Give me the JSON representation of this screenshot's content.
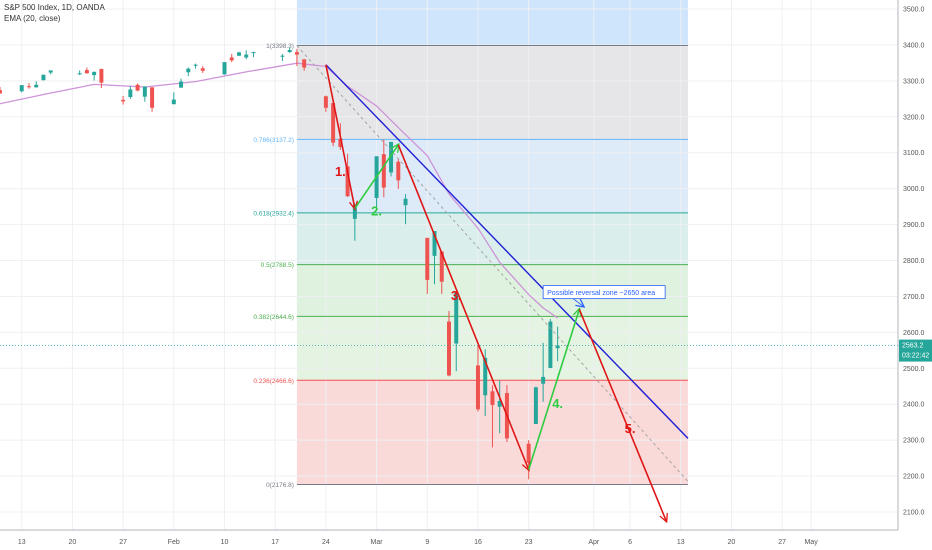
{
  "header": {
    "symbol_label": "S&P 500 Index, 1D, OANDA",
    "indicator_label": "EMA (20, close)"
  },
  "colors": {
    "up": "#26a69a",
    "down": "#ef5350",
    "ema": "#ce93d8",
    "trendline": "#1f1fd6",
    "wave_down": "#e01616",
    "wave_up": "#2ecc40",
    "callout": "#2962ff",
    "grid": "#eef0f3"
  },
  "chart_data": {
    "type": "candlestick",
    "y_axis": {
      "min": 2050,
      "max": 3525,
      "ticks": [
        2100,
        2200,
        2300,
        2400,
        2500,
        2600,
        2700,
        2800,
        2900,
        3000,
        3100,
        3200,
        3300,
        3400,
        3500
      ]
    },
    "x_axis": {
      "min": "2020-01-10",
      "max": "2020-05-13",
      "ticks": [
        {
          "date": "2020-01-13",
          "label": "13"
        },
        {
          "date": "2020-01-20",
          "label": "20"
        },
        {
          "date": "2020-01-27",
          "label": "27"
        },
        {
          "date": "2020-02-03",
          "label": "Feb"
        },
        {
          "date": "2020-02-10",
          "label": "10"
        },
        {
          "date": "2020-02-17",
          "label": "17"
        },
        {
          "date": "2020-02-24",
          "label": "24"
        },
        {
          "date": "2020-03-02",
          "label": "Mar"
        },
        {
          "date": "2020-03-09",
          "label": "9"
        },
        {
          "date": "2020-03-16",
          "label": "16"
        },
        {
          "date": "2020-03-23",
          "label": "23"
        },
        {
          "date": "2020-04-01",
          "label": "Apr"
        },
        {
          "date": "2020-04-06",
          "label": "6"
        },
        {
          "date": "2020-04-13",
          "label": "13"
        },
        {
          "date": "2020-04-20",
          "label": "20"
        },
        {
          "date": "2020-04-27",
          "label": "27"
        },
        {
          "date": "2020-05-01",
          "label": "May"
        }
      ]
    },
    "last_price": "2563.2",
    "countdown": "03:22:42",
    "candles": [
      {
        "d": "2020-01-09",
        "o": 3266,
        "h": 3276,
        "l": 3263,
        "c": 3275
      },
      {
        "d": "2020-01-10",
        "o": 3274,
        "h": 3283,
        "l": 3264,
        "c": 3265
      },
      {
        "d": "2020-01-13",
        "o": 3271,
        "h": 3288,
        "l": 3268,
        "c": 3288
      },
      {
        "d": "2020-01-14",
        "o": 3285,
        "h": 3294,
        "l": 3278,
        "c": 3283
      },
      {
        "d": "2020-01-15",
        "o": 3282,
        "h": 3299,
        "l": 3281,
        "c": 3289
      },
      {
        "d": "2020-01-16",
        "o": 3302,
        "h": 3317,
        "l": 3301,
        "c": 3317
      },
      {
        "d": "2020-01-17",
        "o": 3323,
        "h": 3329,
        "l": 3318,
        "c": 3329
      },
      {
        "d": "2020-01-21",
        "o": 3321,
        "h": 3329,
        "l": 3316,
        "c": 3321
      },
      {
        "d": "2020-01-22",
        "o": 3330,
        "h": 3337,
        "l": 3320,
        "c": 3321
      },
      {
        "d": "2020-01-23",
        "o": 3316,
        "h": 3326,
        "l": 3301,
        "c": 3325
      },
      {
        "d": "2020-01-24",
        "o": 3333,
        "h": 3334,
        "l": 3280,
        "c": 3295
      },
      {
        "d": "2020-01-27",
        "o": 3247,
        "h": 3258,
        "l": 3234,
        "c": 3243
      },
      {
        "d": "2020-01-28",
        "o": 3255,
        "h": 3285,
        "l": 3250,
        "c": 3276
      },
      {
        "d": "2020-01-29",
        "o": 3289,
        "h": 3293,
        "l": 3271,
        "c": 3273
      },
      {
        "d": "2020-01-30",
        "o": 3256,
        "h": 3285,
        "l": 3242,
        "c": 3284
      },
      {
        "d": "2020-01-31",
        "o": 3282,
        "h": 3282,
        "l": 3214,
        "c": 3225
      },
      {
        "d": "2020-02-03",
        "o": 3235,
        "h": 3268,
        "l": 3235,
        "c": 3248
      },
      {
        "d": "2020-02-04",
        "o": 3281,
        "h": 3306,
        "l": 3281,
        "c": 3298
      },
      {
        "d": "2020-02-05",
        "o": 3324,
        "h": 3337,
        "l": 3313,
        "c": 3334
      },
      {
        "d": "2020-02-06",
        "o": 3344,
        "h": 3348,
        "l": 3334,
        "c": 3345
      },
      {
        "d": "2020-02-07",
        "o": 3335,
        "h": 3341,
        "l": 3322,
        "c": 3328
      },
      {
        "d": "2020-02-10",
        "o": 3318,
        "h": 3352,
        "l": 3317,
        "c": 3352
      },
      {
        "d": "2020-02-11",
        "o": 3365,
        "h": 3375,
        "l": 3352,
        "c": 3357
      },
      {
        "d": "2020-02-12",
        "o": 3370,
        "h": 3381,
        "l": 3369,
        "c": 3379
      },
      {
        "d": "2020-02-13",
        "o": 3365,
        "h": 3385,
        "l": 3360,
        "c": 3373
      },
      {
        "d": "2020-02-14",
        "o": 3378,
        "h": 3381,
        "l": 3366,
        "c": 3380
      },
      {
        "d": "2020-02-18",
        "o": 3369,
        "h": 3375,
        "l": 3355,
        "c": 3370
      },
      {
        "d": "2020-02-19",
        "o": 3380,
        "h": 3393,
        "l": 3378,
        "c": 3386
      },
      {
        "d": "2020-02-20",
        "o": 3380,
        "h": 3389,
        "l": 3341,
        "c": 3373
      },
      {
        "d": "2020-02-21",
        "o": 3360,
        "h": 3360,
        "l": 3328,
        "c": 3337
      },
      {
        "d": "2020-02-24",
        "o": 3257,
        "h": 3259,
        "l": 3214,
        "c": 3225
      },
      {
        "d": "2020-02-25",
        "o": 3238,
        "h": 3247,
        "l": 3118,
        "c": 3128
      },
      {
        "d": "2020-02-26",
        "o": 3139,
        "h": 3182,
        "l": 3108,
        "c": 3116
      },
      {
        "d": "2020-02-27",
        "o": 3062,
        "h": 3097,
        "l": 2977,
        "c": 2979
      },
      {
        "d": "2020-02-28",
        "o": 2916,
        "h": 2959,
        "l": 2855,
        "c": 2954
      },
      {
        "d": "2020-03-02",
        "o": 2974,
        "h": 3090,
        "l": 2945,
        "c": 3090
      },
      {
        "d": "2020-03-03",
        "o": 3096,
        "h": 3136,
        "l": 2976,
        "c": 3003
      },
      {
        "d": "2020-03-04",
        "o": 3045,
        "h": 3130,
        "l": 3034,
        "c": 3130
      },
      {
        "d": "2020-03-05",
        "o": 3075,
        "h": 3083,
        "l": 2999,
        "c": 3023
      },
      {
        "d": "2020-03-06",
        "o": 2954,
        "h": 2985,
        "l": 2901,
        "c": 2972
      },
      {
        "d": "2020-03-09",
        "o": 2863,
        "h": 2863,
        "l": 2707,
        "c": 2746
      },
      {
        "d": "2020-03-10",
        "o": 2813,
        "h": 2882,
        "l": 2734,
        "c": 2882
      },
      {
        "d": "2020-03-11",
        "o": 2825,
        "h": 2825,
        "l": 2707,
        "c": 2741
      },
      {
        "d": "2020-03-12",
        "o": 2630,
        "h": 2660,
        "l": 2478,
        "c": 2480
      },
      {
        "d": "2020-03-13",
        "o": 2569,
        "h": 2711,
        "l": 2492,
        "c": 2711
      },
      {
        "d": "2020-03-16",
        "o": 2508,
        "h": 2562,
        "l": 2380,
        "c": 2386
      },
      {
        "d": "2020-03-17",
        "o": 2425,
        "h": 2553,
        "l": 2367,
        "c": 2529
      },
      {
        "d": "2020-03-18",
        "o": 2436,
        "h": 2453,
        "l": 2280,
        "c": 2398
      },
      {
        "d": "2020-03-19",
        "o": 2393,
        "h": 2466,
        "l": 2319,
        "c": 2409
      },
      {
        "d": "2020-03-20",
        "o": 2431,
        "h": 2453,
        "l": 2295,
        "c": 2305
      },
      {
        "d": "2020-03-23",
        "o": 2290,
        "h": 2300,
        "l": 2191,
        "c": 2237
      },
      {
        "d": "2020-03-24",
        "o": 2345,
        "h": 2449,
        "l": 2345,
        "c": 2447
      },
      {
        "d": "2020-03-25",
        "o": 2457,
        "h": 2571,
        "l": 2407,
        "c": 2476
      },
      {
        "d": "2020-03-26",
        "o": 2501,
        "h": 2637,
        "l": 2500,
        "c": 2630
      },
      {
        "d": "2020-03-27",
        "o": 2556,
        "h": 2616,
        "l": 2520,
        "c": 2563
      }
    ],
    "ema": [
      [
        "2020-01-09",
        3232
      ],
      [
        "2020-01-16",
        3262
      ],
      [
        "2020-01-23",
        3290
      ],
      [
        "2020-01-30",
        3283
      ],
      [
        "2020-02-06",
        3298
      ],
      [
        "2020-02-13",
        3325
      ],
      [
        "2020-02-20",
        3349
      ],
      [
        "2020-02-24",
        3340
      ],
      [
        "2020-02-27",
        3285
      ],
      [
        "2020-03-02",
        3230
      ],
      [
        "2020-03-05",
        3170
      ],
      [
        "2020-03-09",
        3092
      ],
      [
        "2020-03-12",
        2985
      ],
      [
        "2020-03-16",
        2890
      ],
      [
        "2020-03-19",
        2795
      ],
      [
        "2020-03-23",
        2705
      ],
      [
        "2020-03-25",
        2668
      ],
      [
        "2020-03-27",
        2640
      ]
    ],
    "fib_levels": [
      {
        "ratio": "1",
        "price": 3398.3,
        "label": "1(3398.3)",
        "color": "#787b86"
      },
      {
        "ratio": "0.786",
        "price": 3137.2,
        "label": "0.786(3137.2)",
        "color": "#64b5f6"
      },
      {
        "ratio": "0.618",
        "price": 2932.4,
        "label": "0.618(2932.4)",
        "color": "#26a69a"
      },
      {
        "ratio": "0.5",
        "price": 2788.5,
        "label": "0.5(2788.5)",
        "color": "#4caf50"
      },
      {
        "ratio": "0.382",
        "price": 2644.6,
        "label": "0.382(2644.6)",
        "color": "#4caf50"
      },
      {
        "ratio": "0.236",
        "price": 2466.6,
        "label": "0.236(2466.6)",
        "color": "#ef5350"
      },
      {
        "ratio": "0",
        "price": 2176.8,
        "label": "0(2176.8)",
        "color": "#787b86"
      }
    ],
    "fib_start": "2020-02-20",
    "fib_end": "2020-04-14",
    "trendline": {
      "from": [
        "2020-02-24",
        3345
      ],
      "to": [
        "2020-04-14",
        2305
      ]
    },
    "dashed_line": {
      "from": [
        "2020-02-20",
        3398
      ],
      "to": [
        "2020-04-14",
        2185
      ]
    },
    "waves": [
      {
        "label": "1.",
        "kind": "down",
        "from": [
          "2020-02-24",
          3345
        ],
        "to": [
          "2020-02-28",
          2945
        ],
        "label_at": [
          "2020-02-26",
          3035
        ]
      },
      {
        "label": "2.",
        "kind": "up",
        "from": [
          "2020-02-28",
          2945
        ],
        "to": [
          "2020-03-05",
          3122
        ],
        "label_at": [
          "2020-03-02",
          2925
        ]
      },
      {
        "label": "3.",
        "kind": "down",
        "from": [
          "2020-03-05",
          3122
        ],
        "to": [
          "2020-03-23",
          2218
        ],
        "label_at": [
          "2020-03-13",
          2690
        ]
      },
      {
        "label": "4.",
        "kind": "up",
        "from": [
          "2020-03-23",
          2218
        ],
        "to": [
          "2020-03-30",
          2664
        ],
        "label_at": [
          "2020-03-27",
          2390
        ]
      },
      {
        "label": "5.",
        "kind": "down",
        "from": [
          "2020-03-30",
          2664
        ],
        "to": [
          "2020-04-11",
          2075
        ],
        "label_at": [
          "2020-04-06",
          2320
        ]
      }
    ],
    "annotation": {
      "text": "Possible reversal zone ~2650 area",
      "at": [
        "2020-03-25",
        2712
      ],
      "point": [
        "2020-03-30",
        2664
      ]
    }
  }
}
